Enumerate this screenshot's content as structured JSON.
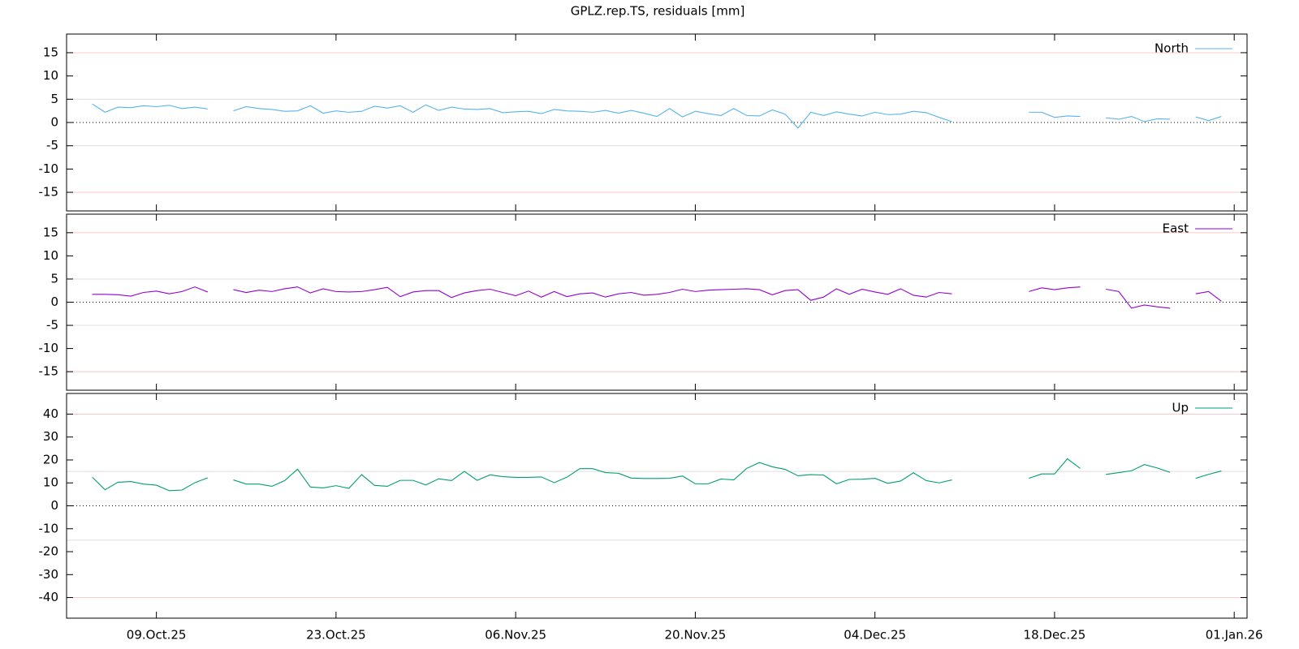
{
  "title": "GPLZ.rep.TS, residuals [mm]",
  "chart_data": [
    {
      "type": "line",
      "x": [
        "2025-10-04",
        "2025-10-05",
        "2025-10-06",
        "2025-10-07",
        "2025-10-08",
        "2025-10-09",
        "2025-10-10",
        "2025-10-11",
        "2025-10-12",
        "2025-10-13",
        "2025-10-14",
        "2025-10-15",
        "2025-10-16",
        "2025-10-17",
        "2025-10-18",
        "2025-10-19",
        "2025-10-20",
        "2025-10-21",
        "2025-10-22",
        "2025-10-23",
        "2025-10-24",
        "2025-10-25",
        "2025-10-26",
        "2025-10-27",
        "2025-10-28",
        "2025-10-29",
        "2025-10-30",
        "2025-10-31",
        "2025-11-01",
        "2025-11-02",
        "2025-11-03",
        "2025-11-04",
        "2025-11-05",
        "2025-11-06",
        "2025-11-07",
        "2025-11-08",
        "2025-11-09",
        "2025-11-10",
        "2025-11-11",
        "2025-11-12",
        "2025-11-13",
        "2025-11-14",
        "2025-11-15",
        "2025-11-16",
        "2025-11-17",
        "2025-11-18",
        "2025-11-19",
        "2025-11-20",
        "2025-11-21",
        "2025-11-22",
        "2025-11-23",
        "2025-11-24",
        "2025-11-25",
        "2025-11-26",
        "2025-11-27",
        "2025-11-28",
        "2025-11-29",
        "2025-11-30",
        "2025-12-01",
        "2025-12-02",
        "2025-12-03",
        "2025-12-04",
        "2025-12-05",
        "2025-12-06",
        "2025-12-07",
        "2025-12-08",
        "2025-12-09",
        "2025-12-10",
        "2025-12-11",
        "2025-12-12",
        "2025-12-13",
        "2025-12-14",
        "2025-12-15",
        "2025-12-16",
        "2025-12-17",
        "2025-12-18",
        "2025-12-19",
        "2025-12-20",
        "2025-12-21",
        "2025-12-22",
        "2025-12-23",
        "2025-12-24",
        "2025-12-25",
        "2025-12-26",
        "2025-12-27",
        "2025-12-28",
        "2025-12-29",
        "2025-12-30",
        "2025-12-31"
      ],
      "xlim": [
        "2025-10-02",
        "2026-01-02"
      ],
      "ylim": [
        -19,
        19
      ],
      "yticks": [
        -15,
        -10,
        -5,
        0,
        5,
        10,
        15
      ],
      "hlines": [
        {
          "value": 15,
          "color": "#ffc8c8"
        },
        {
          "value": 5,
          "color": "#e4dcdc"
        },
        {
          "value": 0,
          "color": "#000000",
          "dotted": true
        },
        {
          "value": -5,
          "color": "#e4dcdc"
        },
        {
          "value": -15,
          "color": "#ffc8c8"
        }
      ],
      "legend": "upper right",
      "series": [
        {
          "name": "North",
          "color": "#56b4e9",
          "values": [
            4.0,
            2.2,
            3.3,
            3.2,
            3.6,
            3.4,
            3.7,
            3.0,
            3.3,
            2.9,
            null,
            2.5,
            3.4,
            3.0,
            2.8,
            2.4,
            2.5,
            3.6,
            2.0,
            2.5,
            2.2,
            2.4,
            3.5,
            3.1,
            3.6,
            2.2,
            3.8,
            2.6,
            3.3,
            2.9,
            2.8,
            3.0,
            2.1,
            2.3,
            2.4,
            1.9,
            2.8,
            2.5,
            2.4,
            2.2,
            2.6,
            2.0,
            2.6,
            2.0,
            1.3,
            3.0,
            1.2,
            2.4,
            1.9,
            1.5,
            3.0,
            1.5,
            1.4,
            2.7,
            1.8,
            -1.2,
            2.2,
            1.5,
            2.3,
            1.8,
            1.4,
            2.2,
            1.7,
            1.8,
            2.4,
            2.1,
            1.1,
            0.2,
            null,
            null,
            null,
            null,
            null,
            2.2,
            2.2,
            1.1,
            1.4,
            1.3,
            null,
            1.0,
            0.7,
            1.3,
            0.2,
            0.8,
            0.7,
            null,
            1.2,
            0.4,
            1.3
          ]
        }
      ]
    },
    {
      "type": "line",
      "x": [
        "2025-10-04",
        "2025-10-05",
        "2025-10-06",
        "2025-10-07",
        "2025-10-08",
        "2025-10-09",
        "2025-10-10",
        "2025-10-11",
        "2025-10-12",
        "2025-10-13",
        "2025-10-14",
        "2025-10-15",
        "2025-10-16",
        "2025-10-17",
        "2025-10-18",
        "2025-10-19",
        "2025-10-20",
        "2025-10-21",
        "2025-10-22",
        "2025-10-23",
        "2025-10-24",
        "2025-10-25",
        "2025-10-26",
        "2025-10-27",
        "2025-10-28",
        "2025-10-29",
        "2025-10-30",
        "2025-10-31",
        "2025-11-01",
        "2025-11-02",
        "2025-11-03",
        "2025-11-04",
        "2025-11-05",
        "2025-11-06",
        "2025-11-07",
        "2025-11-08",
        "2025-11-09",
        "2025-11-10",
        "2025-11-11",
        "2025-11-12",
        "2025-11-13",
        "2025-11-14",
        "2025-11-15",
        "2025-11-16",
        "2025-11-17",
        "2025-11-18",
        "2025-11-19",
        "2025-11-20",
        "2025-11-21",
        "2025-11-22",
        "2025-11-23",
        "2025-11-24",
        "2025-11-25",
        "2025-11-26",
        "2025-11-27",
        "2025-11-28",
        "2025-11-29",
        "2025-11-30",
        "2025-12-01",
        "2025-12-02",
        "2025-12-03",
        "2025-12-04",
        "2025-12-05",
        "2025-12-06",
        "2025-12-07",
        "2025-12-08",
        "2025-12-09",
        "2025-12-10",
        "2025-12-11",
        "2025-12-12",
        "2025-12-13",
        "2025-12-14",
        "2025-12-15",
        "2025-12-16",
        "2025-12-17",
        "2025-12-18",
        "2025-12-19",
        "2025-12-20",
        "2025-12-21",
        "2025-12-22",
        "2025-12-23",
        "2025-12-24",
        "2025-12-25",
        "2025-12-26",
        "2025-12-27",
        "2025-12-28",
        "2025-12-29",
        "2025-12-30",
        "2025-12-31"
      ],
      "xlim": [
        "2025-10-02",
        "2026-01-02"
      ],
      "ylim": [
        -19,
        19
      ],
      "yticks": [
        -15,
        -10,
        -5,
        0,
        5,
        10,
        15
      ],
      "hlines": [
        {
          "value": 15,
          "color": "#ffc8c8"
        },
        {
          "value": 5,
          "color": "#e4dcdc"
        },
        {
          "value": 0,
          "color": "#000000",
          "dotted": true
        },
        {
          "value": -5,
          "color": "#e4dcdc"
        },
        {
          "value": -15,
          "color": "#ffc8c8"
        }
      ],
      "legend": "upper right",
      "series": [
        {
          "name": "East",
          "color": "#9400d3",
          "values": [
            1.7,
            1.7,
            1.6,
            1.3,
            2.1,
            2.4,
            1.8,
            2.3,
            3.3,
            2.2,
            null,
            2.7,
            2.1,
            2.6,
            2.3,
            2.9,
            3.3,
            2.0,
            2.9,
            2.3,
            2.2,
            2.3,
            2.7,
            3.2,
            1.2,
            2.2,
            2.5,
            2.5,
            1.0,
            2.0,
            2.5,
            2.8,
            2.1,
            1.4,
            2.4,
            1.1,
            2.3,
            1.2,
            1.8,
            2.0,
            1.1,
            1.8,
            2.1,
            1.5,
            1.7,
            2.1,
            2.8,
            2.3,
            2.6,
            2.7,
            2.8,
            2.9,
            2.7,
            1.6,
            2.5,
            2.7,
            0.4,
            1.1,
            2.9,
            1.7,
            2.8,
            2.2,
            1.7,
            2.9,
            1.5,
            1.1,
            2.1,
            1.8,
            null,
            null,
            null,
            null,
            null,
            2.3,
            3.1,
            2.7,
            3.1,
            3.3,
            null,
            2.8,
            2.3,
            -1.3,
            -0.6,
            -1.0,
            -1.3,
            null,
            1.8,
            2.3,
            0.2
          ]
        }
      ]
    },
    {
      "type": "line",
      "x": [
        "2025-10-04",
        "2025-10-05",
        "2025-10-06",
        "2025-10-07",
        "2025-10-08",
        "2025-10-09",
        "2025-10-10",
        "2025-10-11",
        "2025-10-12",
        "2025-10-13",
        "2025-10-14",
        "2025-10-15",
        "2025-10-16",
        "2025-10-17",
        "2025-10-18",
        "2025-10-19",
        "2025-10-20",
        "2025-10-21",
        "2025-10-22",
        "2025-10-23",
        "2025-10-24",
        "2025-10-25",
        "2025-10-26",
        "2025-10-27",
        "2025-10-28",
        "2025-10-29",
        "2025-10-30",
        "2025-10-31",
        "2025-11-01",
        "2025-11-02",
        "2025-11-03",
        "2025-11-04",
        "2025-11-05",
        "2025-11-06",
        "2025-11-07",
        "2025-11-08",
        "2025-11-09",
        "2025-11-10",
        "2025-11-11",
        "2025-11-12",
        "2025-11-13",
        "2025-11-14",
        "2025-11-15",
        "2025-11-16",
        "2025-11-17",
        "2025-11-18",
        "2025-11-19",
        "2025-11-20",
        "2025-11-21",
        "2025-11-22",
        "2025-11-23",
        "2025-11-24",
        "2025-11-25",
        "2025-11-26",
        "2025-11-27",
        "2025-11-28",
        "2025-11-29",
        "2025-11-30",
        "2025-12-01",
        "2025-12-02",
        "2025-12-03",
        "2025-12-04",
        "2025-12-05",
        "2025-12-06",
        "2025-12-07",
        "2025-12-08",
        "2025-12-09",
        "2025-12-10",
        "2025-12-11",
        "2025-12-12",
        "2025-12-13",
        "2025-12-14",
        "2025-12-15",
        "2025-12-16",
        "2025-12-17",
        "2025-12-18",
        "2025-12-19",
        "2025-12-20",
        "2025-12-21",
        "2025-12-22",
        "2025-12-23",
        "2025-12-24",
        "2025-12-25",
        "2025-12-26",
        "2025-12-27",
        "2025-12-28",
        "2025-12-29",
        "2025-12-30",
        "2025-12-31"
      ],
      "xlim": [
        "2025-10-02",
        "2026-01-02"
      ],
      "xticks": [
        {
          "value": "2025-10-09",
          "label": "09.Oct.25"
        },
        {
          "value": "2025-10-23",
          "label": "23.Oct.25"
        },
        {
          "value": "2025-11-06",
          "label": "06.Nov.25"
        },
        {
          "value": "2025-11-20",
          "label": "20.Nov.25"
        },
        {
          "value": "2025-12-04",
          "label": "04.Dec.25"
        },
        {
          "value": "2025-12-18",
          "label": "18.Dec.25"
        },
        {
          "value": "2026-01-01",
          "label": "01.Jan.26"
        }
      ],
      "ylim": [
        -49,
        49
      ],
      "yticks": [
        -40,
        -30,
        -20,
        -10,
        0,
        10,
        20,
        30,
        40
      ],
      "hlines": [
        {
          "value": 40,
          "color": "#ffc8c8"
        },
        {
          "value": 15,
          "color": "#e4dcdc"
        },
        {
          "value": 0,
          "color": "#000000",
          "dotted": true
        },
        {
          "value": -15,
          "color": "#e4dcdc"
        },
        {
          "value": -40,
          "color": "#ffc8c8"
        }
      ],
      "legend": "upper right",
      "series": [
        {
          "name": "Up",
          "color": "#009e73",
          "values": [
            12.5,
            7.0,
            10.3,
            10.6,
            9.5,
            9.0,
            6.6,
            6.9,
            10.1,
            12.2,
            null,
            11.3,
            9.5,
            9.5,
            8.5,
            11.0,
            16.0,
            8.2,
            7.8,
            8.8,
            7.6,
            13.6,
            8.9,
            8.5,
            11.1,
            11.1,
            9.1,
            11.8,
            11.0,
            15.0,
            11.1,
            13.5,
            12.7,
            12.4,
            12.4,
            12.6,
            10.1,
            12.5,
            16.2,
            16.2,
            14.5,
            14.2,
            12.1,
            11.9,
            11.9,
            12.0,
            13.0,
            9.6,
            9.6,
            11.7,
            11.3,
            16.3,
            18.9,
            17.0,
            15.9,
            13.1,
            13.6,
            13.4,
            9.6,
            11.5,
            11.6,
            12.0,
            9.8,
            10.8,
            14.4,
            11.0,
            10.0,
            11.3,
            null,
            null,
            null,
            null,
            null,
            12.0,
            13.9,
            13.9,
            20.5,
            16.3,
            null,
            13.7,
            14.5,
            15.3,
            18.0,
            16.5,
            14.6,
            null,
            12.0,
            13.7,
            15.2
          ]
        }
      ]
    }
  ]
}
